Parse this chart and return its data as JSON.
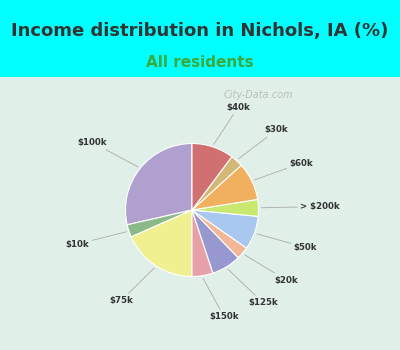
{
  "title": "Income distribution in Nichols, IA (%)",
  "subtitle": "All residents",
  "background_color": "#00FFFF",
  "chart_bg_start": "#e8f5f0",
  "labels": [
    "$100k",
    "$10k",
    "$75k",
    "$150k",
    "$125k",
    "$20k",
    "$50k",
    "> $200k",
    "$60k",
    "$30k",
    "$40k"
  ],
  "values": [
    28,
    3,
    18,
    5,
    7,
    3,
    8,
    4,
    9,
    3,
    10
  ],
  "colors": [
    "#b0a0d0",
    "#8aba8a",
    "#f0f090",
    "#e8a0a8",
    "#9898d0",
    "#f0b898",
    "#a8c8f0",
    "#c8e870",
    "#f0b060",
    "#d4b878",
    "#d07070"
  ],
  "startangle": 90,
  "title_fontsize": 13,
  "subtitle_fontsize": 11,
  "watermark": "City-Data.com"
}
